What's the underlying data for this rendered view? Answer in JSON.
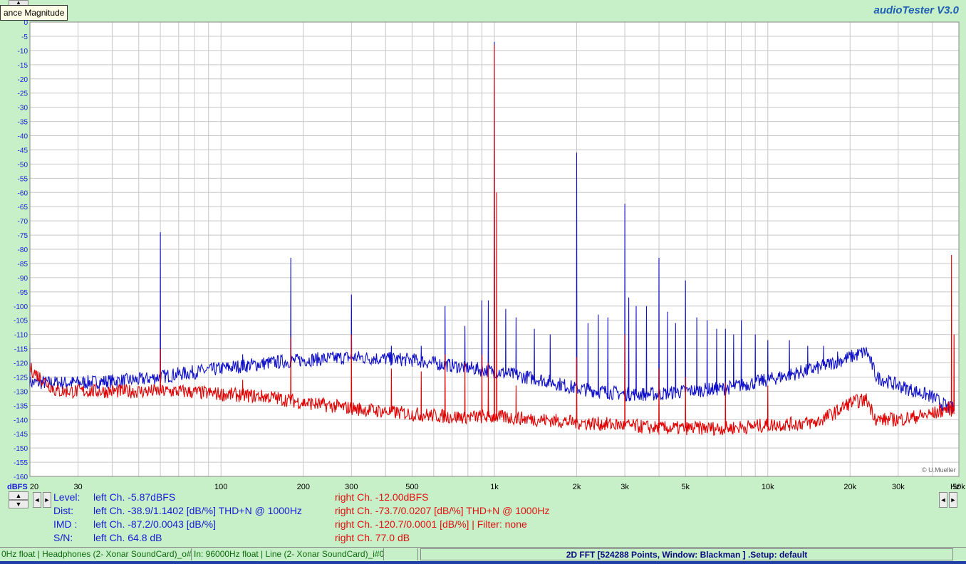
{
  "app": {
    "title": "audioTester  V3.0",
    "tooltip": "ance Magnitude"
  },
  "controls": {
    "spin_up": "▲",
    "spin_down": "▼",
    "arrow_left": "◄",
    "arrow_right": "►"
  },
  "colors": {
    "background": "#c8f0c8",
    "plot_background": "#ffffff",
    "grid": "#c8c8c8",
    "left_channel": "#1010c8",
    "right_channel": "#e00000",
    "axis_text": "#1a1ad8"
  },
  "measurements": {
    "level": {
      "label": "Level:",
      "left": "left Ch. -5.87dBFS",
      "right": "right Ch. -12.00dBFS"
    },
    "dist": {
      "label": "Dist:",
      "left": "left Ch. -38.9/1.1402 [dB/%] THD+N  @ 1000Hz",
      "right": "right Ch. -73.7/0.0207 [dB/%] THD+N  @ 1000Hz"
    },
    "imd": {
      "label": "IMD  :",
      "left": "left Ch. -87.2/0.0043 [dB/%]",
      "right": "right Ch. -120.7/0.0001 [dB/%] |   Filter: none"
    },
    "sn": {
      "label": "S/N:",
      "left": "left Ch. 64.8 dB",
      "right": "right Ch. 77.0 dB"
    }
  },
  "status": {
    "out": "0Hz float  | Headphones (2- Xonar SoundCard)_o#0",
    "in": "In: 96000Hz float  | Line (2- Xonar SoundCard)_i#0",
    "fft": "2D FFT [524288 Points, Window: Blackman ]  .Setup:  default"
  },
  "copyright": "© U.Mueller",
  "chart_data": {
    "type": "line",
    "xscale": "log",
    "xlim": [
      20,
      50000
    ],
    "ylim": [
      -160,
      0
    ],
    "grid": true,
    "ylabel": "dBFS",
    "xunit": "Hz",
    "x_ticks": [
      {
        "v": 20,
        "label": "20"
      },
      {
        "v": 30,
        "label": "30"
      },
      {
        "v": 100,
        "label": "100"
      },
      {
        "v": 200,
        "label": "200"
      },
      {
        "v": 300,
        "label": "300"
      },
      {
        "v": 500,
        "label": "500"
      },
      {
        "v": 1000,
        "label": "1k"
      },
      {
        "v": 2000,
        "label": "2k"
      },
      {
        "v": 3000,
        "label": "3k"
      },
      {
        "v": 5000,
        "label": "5k"
      },
      {
        "v": 10000,
        "label": "10k"
      },
      {
        "v": 20000,
        "label": "20k"
      },
      {
        "v": 30000,
        "label": "30k"
      },
      {
        "v": 50000,
        "label": "50k"
      }
    ],
    "y_ticks": [
      0,
      -5,
      -10,
      -15,
      -20,
      -25,
      -30,
      -35,
      -40,
      -45,
      -50,
      -55,
      -60,
      -65,
      -70,
      -75,
      -80,
      -85,
      -90,
      -95,
      -100,
      -105,
      -110,
      -115,
      -120,
      -125,
      -130,
      -135,
      -140,
      -145,
      -150,
      -155,
      -160
    ],
    "series": [
      {
        "color": "#1010c8",
        "floor": [
          [
            20,
            -127
          ],
          [
            30,
            -127
          ],
          [
            50,
            -126
          ],
          [
            70,
            -124
          ],
          [
            100,
            -122
          ],
          [
            150,
            -120
          ],
          [
            200,
            -119
          ],
          [
            300,
            -118
          ],
          [
            500,
            -119
          ],
          [
            700,
            -121
          ],
          [
            1000,
            -123
          ],
          [
            1500,
            -126
          ],
          [
            2000,
            -129
          ],
          [
            3000,
            -131
          ],
          [
            4000,
            -131
          ],
          [
            5000,
            -130
          ],
          [
            7000,
            -129
          ],
          [
            10000,
            -126
          ],
          [
            15000,
            -122
          ],
          [
            20000,
            -118
          ],
          [
            23000,
            -116
          ],
          [
            25000,
            -125
          ],
          [
            30000,
            -128
          ],
          [
            40000,
            -132
          ],
          [
            46000,
            -136
          ],
          [
            48000,
            -136
          ]
        ],
        "peaks": [
          [
            20,
            -113
          ],
          [
            60,
            -74
          ],
          [
            120,
            -117
          ],
          [
            180,
            -83
          ],
          [
            300,
            -96
          ],
          [
            420,
            -114
          ],
          [
            540,
            -114
          ],
          [
            660,
            -100
          ],
          [
            780,
            -107
          ],
          [
            900,
            -98
          ],
          [
            950,
            -98
          ],
          [
            1000,
            -7
          ],
          [
            1100,
            -101
          ],
          [
            1200,
            -104
          ],
          [
            1400,
            -108
          ],
          [
            1600,
            -110
          ],
          [
            2000,
            -46
          ],
          [
            2200,
            -106
          ],
          [
            2400,
            -103
          ],
          [
            2600,
            -104
          ],
          [
            3000,
            -64
          ],
          [
            3100,
            -97
          ],
          [
            3300,
            -100
          ],
          [
            3600,
            -100
          ],
          [
            4000,
            -83
          ],
          [
            4300,
            -102
          ],
          [
            4600,
            -106
          ],
          [
            5000,
            -91
          ],
          [
            5500,
            -104
          ],
          [
            6000,
            -105
          ],
          [
            6500,
            -108
          ],
          [
            7000,
            -108
          ],
          [
            7500,
            -110
          ],
          [
            8000,
            -105
          ],
          [
            9000,
            -110
          ],
          [
            10000,
            -112
          ],
          [
            12000,
            -112
          ],
          [
            14000,
            -114
          ],
          [
            16000,
            -114
          ],
          [
            18000,
            -116
          ],
          [
            47000,
            -130
          ]
        ]
      },
      {
        "color": "#e00000",
        "floor": [
          [
            20,
            -122
          ],
          [
            25,
            -130
          ],
          [
            30,
            -130
          ],
          [
            50,
            -130
          ],
          [
            70,
            -130
          ],
          [
            100,
            -131
          ],
          [
            150,
            -132
          ],
          [
            200,
            -134
          ],
          [
            300,
            -136
          ],
          [
            500,
            -138
          ],
          [
            700,
            -139
          ],
          [
            1000,
            -139
          ],
          [
            1500,
            -140
          ],
          [
            2000,
            -141
          ],
          [
            3000,
            -142
          ],
          [
            4000,
            -143
          ],
          [
            5000,
            -143
          ],
          [
            7000,
            -143
          ],
          [
            10000,
            -142
          ],
          [
            15000,
            -141
          ],
          [
            18000,
            -137
          ],
          [
            20000,
            -134
          ],
          [
            23000,
            -133
          ],
          [
            25000,
            -140
          ],
          [
            30000,
            -140
          ],
          [
            40000,
            -138
          ],
          [
            46000,
            -136
          ],
          [
            48000,
            -137
          ]
        ],
        "peaks": [
          [
            60,
            -115
          ],
          [
            120,
            -126
          ],
          [
            180,
            -111
          ],
          [
            300,
            -110
          ],
          [
            420,
            -122
          ],
          [
            540,
            -123
          ],
          [
            660,
            -117
          ],
          [
            780,
            -120
          ],
          [
            900,
            -117
          ],
          [
            950,
            -120
          ],
          [
            1000,
            -8
          ],
          [
            1020,
            -60
          ],
          [
            1200,
            -128
          ],
          [
            2000,
            -118
          ],
          [
            3000,
            -110
          ],
          [
            4000,
            -122
          ],
          [
            5000,
            -125
          ],
          [
            7000,
            -127
          ],
          [
            10000,
            -128
          ],
          [
            47000,
            -82
          ],
          [
            48000,
            -110
          ]
        ]
      }
    ]
  }
}
